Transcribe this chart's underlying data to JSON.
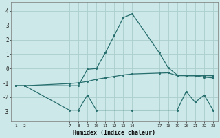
{
  "xlabel": "Humidex (Indice chaleur)",
  "bg_color": "#cde8e8",
  "grid_color": "#aacecc",
  "line_color": "#276e6e",
  "line1_x": [
    1,
    2,
    7,
    8,
    9,
    10,
    11,
    12,
    13,
    14,
    17,
    18,
    19,
    20,
    21,
    22,
    23
  ],
  "line1_y": [
    -1.2,
    -1.2,
    -1.2,
    -1.2,
    -0.05,
    0.0,
    1.1,
    2.3,
    3.55,
    3.8,
    1.1,
    0.05,
    -0.45,
    -0.5,
    -0.5,
    -0.6,
    -0.65
  ],
  "line2_x": [
    1,
    2,
    7,
    8,
    9,
    10,
    11,
    12,
    13,
    14,
    17,
    18,
    19,
    20,
    21,
    22,
    23
  ],
  "line2_y": [
    -1.2,
    -1.2,
    -1.05,
    -1.0,
    -0.9,
    -0.75,
    -0.65,
    -0.55,
    -0.45,
    -0.38,
    -0.32,
    -0.3,
    -0.5,
    -0.5,
    -0.5,
    -0.5,
    -0.5
  ],
  "line3_x": [
    1,
    2,
    7,
    8,
    9,
    10,
    14,
    19,
    20,
    21,
    22,
    23
  ],
  "line3_y": [
    -1.2,
    -1.2,
    -2.9,
    -2.9,
    -1.85,
    -2.9,
    -2.9,
    -2.9,
    -1.6,
    -2.35,
    -1.85,
    -2.9
  ],
  "xticks": [
    1,
    2,
    7,
    8,
    9,
    10,
    11,
    12,
    13,
    14,
    17,
    18,
    19,
    20,
    21,
    22,
    23
  ],
  "yticks": [
    -3,
    -2,
    -1,
    0,
    1,
    2,
    3,
    4
  ],
  "ylim": [
    -3.7,
    4.6
  ],
  "xlim": [
    0.5,
    23.5
  ]
}
